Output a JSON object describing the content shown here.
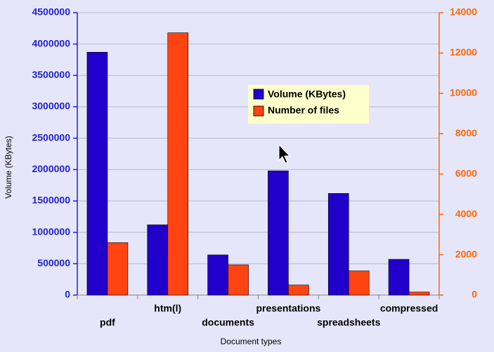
{
  "chart_data": {
    "type": "bar",
    "x_label": "Document types",
    "y_label": "Volume (KBytes)",
    "categories": [
      "pdf",
      "htm(l)",
      "documents",
      "presentations",
      "spreadsheets",
      "compressed"
    ],
    "series": [
      {
        "name": "Volume (KBytes)",
        "color": "#2200cc",
        "values": [
          3870000,
          1120000,
          640000,
          1980000,
          1620000,
          570000
        ]
      },
      {
        "name": "Number of files",
        "color": "#ff4411",
        "axis": "y2",
        "values": [
          2600,
          13000,
          1500,
          500,
          1200,
          150
        ]
      }
    ],
    "ylim": [
      0,
      4500000
    ],
    "yticks": [
      0,
      500000,
      1000000,
      1500000,
      2000000,
      2500000,
      3000000,
      3500000,
      4000000,
      4500000
    ],
    "y2lim": [
      0,
      14000
    ],
    "y2ticks": [
      0,
      2000,
      4000,
      6000,
      8000,
      10000,
      12000,
      14000
    ],
    "grid": true
  }
}
